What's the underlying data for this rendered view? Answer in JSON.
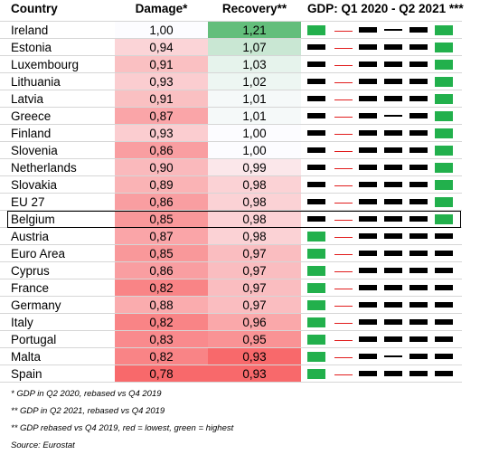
{
  "chart_data": {
    "type": "table",
    "headers": {
      "country": "Country",
      "damage": "Damage*",
      "recovery": "Recovery**",
      "gdp": "GDP: Q1 2020 - Q2 2021 ***"
    },
    "highlighted_row": "Belgium",
    "rows": [
      {
        "country": "Ireland",
        "damage": "1,00",
        "recovery": "1,21",
        "d": 1.0,
        "r": 1.21,
        "gdp": [
          2,
          0,
          1,
          3,
          1,
          2
        ]
      },
      {
        "country": "Estonia",
        "damage": "0,94",
        "recovery": "1,07",
        "d": 0.94,
        "r": 1.07,
        "gdp": [
          1,
          0,
          1,
          1,
          1,
          2
        ]
      },
      {
        "country": "Luxembourg",
        "damage": "0,91",
        "recovery": "1,03",
        "d": 0.91,
        "r": 1.03,
        "gdp": [
          1,
          0,
          1,
          1,
          1,
          2
        ]
      },
      {
        "country": "Lithuania",
        "damage": "0,93",
        "recovery": "1,02",
        "d": 0.93,
        "r": 1.02,
        "gdp": [
          1,
          0,
          1,
          1,
          1,
          2
        ]
      },
      {
        "country": "Latvia",
        "damage": "0,91",
        "recovery": "1,01",
        "d": 0.91,
        "r": 1.01,
        "gdp": [
          1,
          0,
          1,
          1,
          1,
          2
        ]
      },
      {
        "country": "Greece",
        "damage": "0,87",
        "recovery": "1,01",
        "d": 0.87,
        "r": 1.01,
        "gdp": [
          1,
          0,
          1,
          3,
          1,
          2
        ]
      },
      {
        "country": "Finland",
        "damage": "0,93",
        "recovery": "1,00",
        "d": 0.93,
        "r": 1.0,
        "gdp": [
          1,
          0,
          1,
          1,
          1,
          2
        ]
      },
      {
        "country": "Slovenia",
        "damage": "0,86",
        "recovery": "1,00",
        "d": 0.86,
        "r": 1.0,
        "gdp": [
          1,
          0,
          1,
          1,
          1,
          2
        ]
      },
      {
        "country": "Netherlands",
        "damage": "0,90",
        "recovery": "0,99",
        "d": 0.9,
        "r": 0.99,
        "gdp": [
          1,
          0,
          1,
          1,
          1,
          2
        ]
      },
      {
        "country": "Slovakia",
        "damage": "0,89",
        "recovery": "0,98",
        "d": 0.89,
        "r": 0.98,
        "gdp": [
          1,
          0,
          1,
          1,
          1,
          2
        ]
      },
      {
        "country": "EU 27",
        "damage": "0,86",
        "recovery": "0,98",
        "d": 0.86,
        "r": 0.98,
        "gdp": [
          1,
          0,
          1,
          1,
          1,
          2
        ]
      },
      {
        "country": "Belgium",
        "damage": "0,85",
        "recovery": "0,98",
        "d": 0.85,
        "r": 0.98,
        "gdp": [
          1,
          0,
          1,
          1,
          1,
          2
        ]
      },
      {
        "country": "Austria",
        "damage": "0,87",
        "recovery": "0,98",
        "d": 0.87,
        "r": 0.98,
        "gdp": [
          2,
          0,
          1,
          1,
          1,
          1
        ]
      },
      {
        "country": "Euro Area",
        "damage": "0,85",
        "recovery": "0,97",
        "d": 0.85,
        "r": 0.97,
        "gdp": [
          2,
          0,
          1,
          1,
          1,
          1
        ]
      },
      {
        "country": "Cyprus",
        "damage": "0,86",
        "recovery": "0,97",
        "d": 0.86,
        "r": 0.97,
        "gdp": [
          2,
          0,
          1,
          1,
          1,
          1
        ]
      },
      {
        "country": "France",
        "damage": "0,82",
        "recovery": "0,97",
        "d": 0.82,
        "r": 0.97,
        "gdp": [
          2,
          0,
          1,
          1,
          1,
          1
        ]
      },
      {
        "country": "Germany",
        "damage": "0,88",
        "recovery": "0,97",
        "d": 0.88,
        "r": 0.97,
        "gdp": [
          2,
          0,
          1,
          1,
          1,
          1
        ]
      },
      {
        "country": "Italy",
        "damage": "0,82",
        "recovery": "0,96",
        "d": 0.82,
        "r": 0.96,
        "gdp": [
          2,
          0,
          1,
          1,
          1,
          1
        ]
      },
      {
        "country": "Portugal",
        "damage": "0,83",
        "recovery": "0,95",
        "d": 0.83,
        "r": 0.95,
        "gdp": [
          2,
          0,
          1,
          1,
          1,
          1
        ]
      },
      {
        "country": "Malta",
        "damage": "0,82",
        "recovery": "0,93",
        "d": 0.82,
        "r": 0.93,
        "gdp": [
          2,
          0,
          1,
          3,
          1,
          1
        ]
      },
      {
        "country": "Spain",
        "damage": "0,78",
        "recovery": "0,93",
        "d": 0.78,
        "r": 0.93,
        "gdp": [
          2,
          0,
          1,
          1,
          1,
          1
        ]
      }
    ],
    "notes": [
      "* GDP in Q2 2020, rebased vs Q4 2019",
      "** GDP in Q2 2021, rebased vs Q4 2019",
      "** GDP rebased vs Q4 2019, red = lowest, green = highest",
      "Source: Eurostat"
    ],
    "colors": {
      "low": "#f8696b",
      "mid": "#fcfcff",
      "high": "#63be7b",
      "gdp_green": "#22b04c",
      "gdp_red": "#e11d1d",
      "gdp_black": "#000000"
    }
  }
}
